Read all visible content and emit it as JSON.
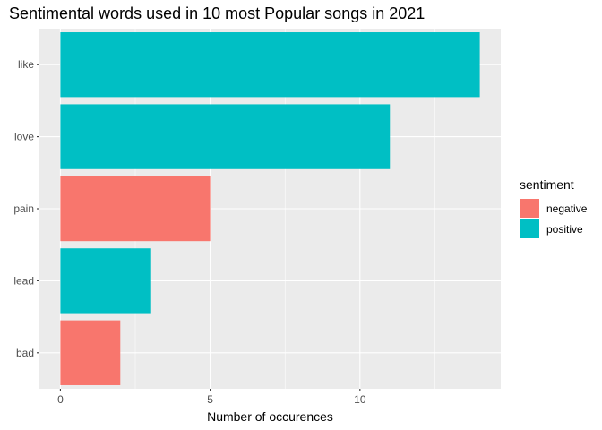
{
  "chart_data": {
    "type": "bar",
    "orientation": "horizontal",
    "title": "Sentimental words used in 10 most Popular songs in 2021",
    "xlabel": "Number of occurences",
    "ylabel": "",
    "xlim": [
      -0.7,
      14.7
    ],
    "x_ticks": [
      0,
      5,
      10
    ],
    "x_tick_labels": [
      "0",
      "5",
      "10"
    ],
    "categories": [
      "like",
      "love",
      "pain",
      "lead",
      "bad"
    ],
    "values": [
      14,
      11,
      5,
      3,
      2
    ],
    "sentiment": [
      "positive",
      "positive",
      "negative",
      "positive",
      "negative"
    ],
    "grid": true,
    "legend": {
      "title": "sentiment",
      "position": "right",
      "entries": [
        {
          "label": "negative",
          "color": "#F8766D"
        },
        {
          "label": "positive",
          "color": "#00BFC4"
        }
      ]
    },
    "colors": {
      "negative": "#F8766D",
      "positive": "#00BFC4",
      "panel_background": "#EBEBEB",
      "grid_major": "#FFFFFF"
    }
  }
}
